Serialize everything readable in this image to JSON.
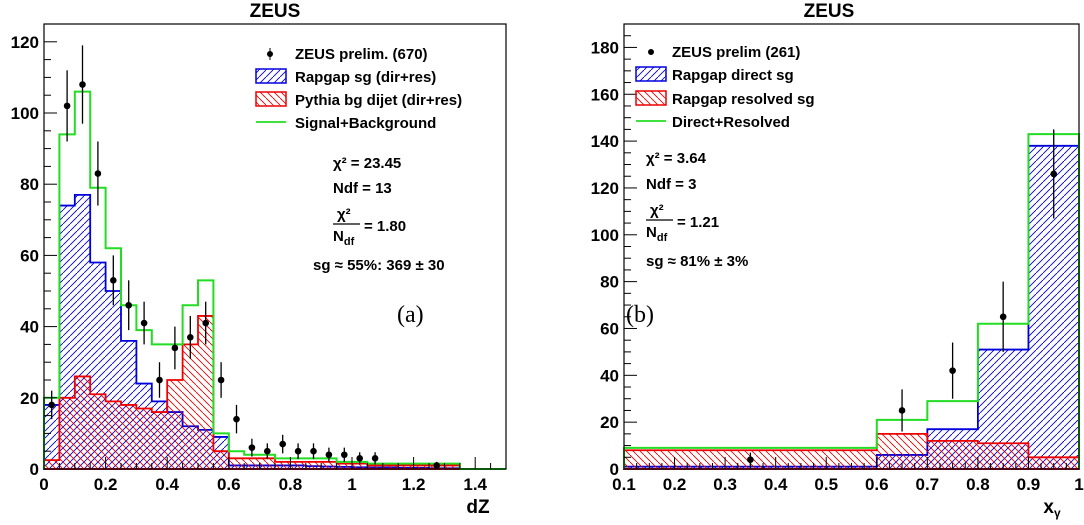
{
  "chart_data": [
    {
      "type": "bar",
      "title": "ZEUS",
      "xlabel": "dZ",
      "ylabel": "",
      "xlim": [
        0,
        1.5
      ],
      "ylim": [
        0,
        125
      ],
      "xticks": [
        0,
        0.2,
        0.4,
        0.6,
        0.8,
        1,
        1.2,
        1.4
      ],
      "xtick_labels": [
        "0",
        "0.2",
        "0.4",
        "0.6",
        "0.8",
        "1",
        "1.2",
        "1.4"
      ],
      "yticks": [
        0,
        20,
        40,
        60,
        80,
        100,
        120
      ],
      "ytick_labels": [
        "0",
        "20",
        "40",
        "60",
        "80",
        "100",
        "120"
      ],
      "bin_edges": [
        0,
        0.05,
        0.1,
        0.15,
        0.2,
        0.25,
        0.3,
        0.35,
        0.4,
        0.45,
        0.5,
        0.55,
        0.6,
        0.65,
        0.7,
        0.75,
        0.8,
        0.85,
        0.9,
        0.95,
        1.0,
        1.05,
        1.1,
        1.15,
        1.2,
        1.25,
        1.3,
        1.35,
        1.4,
        1.45,
        1.5
      ],
      "series": [
        {
          "name": "ZEUS prelim. (670)",
          "kind": "points",
          "x": [
            0.025,
            0.075,
            0.125,
            0.175,
            0.225,
            0.275,
            0.325,
            0.375,
            0.425,
            0.475,
            0.525,
            0.575,
            0.625,
            0.675,
            0.725,
            0.775,
            0.825,
            0.875,
            0.925,
            0.975,
            1.025,
            1.075,
            1.275
          ],
          "y": [
            18,
            102,
            108,
            83,
            53,
            46,
            41,
            25,
            34,
            37,
            41,
            25,
            14,
            6,
            5,
            7,
            5,
            5,
            4,
            4,
            3,
            3,
            1
          ],
          "err": [
            4,
            10,
            11,
            9,
            7,
            7,
            6,
            5,
            6,
            6,
            6,
            5,
            4,
            2.5,
            2.2,
            2.6,
            2.2,
            2.2,
            2,
            2,
            1.7,
            1.7,
            1
          ]
        },
        {
          "name": "Rapgap sg (dir+res)",
          "kind": "hatched",
          "color": "#0000dd",
          "values": [
            18,
            74,
            77,
            58,
            50,
            36,
            24,
            19,
            16,
            12,
            11,
            9,
            1,
            1,
            1,
            1,
            1,
            0.8,
            0.7,
            0.6,
            0.5,
            0.4,
            0.4,
            0.3,
            0.3,
            0.2,
            0.2,
            0,
            0,
            0
          ]
        },
        {
          "name": "Pythia bg dijet (dir+res)",
          "kind": "hatched",
          "color": "#ee0000",
          "values": [
            2.5,
            20,
            26,
            21,
            19,
            18,
            17,
            16,
            25,
            35,
            43,
            5,
            3,
            3,
            3,
            2,
            2,
            2,
            2,
            1.5,
            1.5,
            1,
            1,
            1,
            1,
            1,
            1,
            0,
            0,
            0
          ]
        },
        {
          "name": "Signal+Background",
          "kind": "step",
          "color": "#22dd22",
          "values": [
            20,
            94,
            106,
            79,
            62,
            46,
            39,
            35,
            35,
            46,
            53,
            10,
            5,
            4,
            4,
            3,
            3,
            3,
            3,
            2,
            2,
            1.5,
            1.5,
            1.5,
            1.5,
            1.5,
            1.5,
            0,
            0,
            0
          ]
        }
      ],
      "legend": "top-right",
      "annotations": [
        "χ² = 23.45",
        "Ndf = 13",
        "χ²/N_df = 1.80",
        "sg ≈ 55%: 369 ± 30"
      ],
      "panel_label": "(a)"
    },
    {
      "type": "bar",
      "title": "ZEUS",
      "xlabel": "x_γ",
      "ylabel": "",
      "xlim": [
        0.1,
        1.0
      ],
      "ylim": [
        0,
        190
      ],
      "xticks": [
        0.1,
        0.2,
        0.3,
        0.4,
        0.5,
        0.6,
        0.7,
        0.8,
        0.9,
        1.0
      ],
      "xtick_labels": [
        "0.1",
        "0.2",
        "0.3",
        "0.4",
        "0.5",
        "0.6",
        "0.7",
        "0.8",
        "0.9",
        "1"
      ],
      "yticks": [
        0,
        20,
        40,
        60,
        80,
        100,
        120,
        140,
        160,
        180
      ],
      "ytick_labels": [
        "0",
        "20",
        "40",
        "60",
        "80",
        "100",
        "120",
        "140",
        "160",
        "180"
      ],
      "bin_edges": [
        0.1,
        0.6,
        0.7,
        0.8,
        0.9,
        1.0
      ],
      "series": [
        {
          "name": "ZEUS prelim (261)",
          "kind": "points",
          "x": [
            0.35,
            0.65,
            0.75,
            0.85,
            0.95
          ],
          "y": [
            4,
            25,
            42,
            65,
            126
          ],
          "err": [
            3,
            9,
            12,
            15,
            19
          ]
        },
        {
          "name": "Rapgap direct sg",
          "kind": "hatched",
          "color": "#0000dd",
          "values": [
            1,
            6,
            17,
            51,
            138
          ]
        },
        {
          "name": "Rapgap resolved sg",
          "kind": "hatched",
          "color": "#ee0000",
          "values": [
            8,
            15,
            12,
            11,
            5
          ]
        },
        {
          "name": "Direct+Resolved",
          "kind": "step",
          "color": "#22dd22",
          "values": [
            9,
            21,
            29,
            62,
            143
          ]
        }
      ],
      "legend": "top-left",
      "annotations": [
        "χ² = 3.64",
        "Ndf = 3",
        "χ²/N_df = 1.21",
        "sg ≈ 81% ± 3%"
      ],
      "panel_label": "(b)"
    }
  ],
  "text": {
    "a": {
      "title": "ZEUS",
      "xlabel": "dZ",
      "leg1": "ZEUS prelim. (670)",
      "leg2": "Rapgap sg (dir+res)",
      "leg3": "Pythia bg dijet (dir+res)",
      "leg4": "Signal+Background",
      "chi2": "χ² = 23.45",
      "ndf": "Ndf = 13",
      "ratio_num": "χ²",
      "ratio_den": "N",
      "ratio_den_sub": "df",
      "ratio_val": "= 1.80",
      "sg": "sg ≈ 55%: 369 ± 30",
      "panel": "(a)"
    },
    "b": {
      "title": "ZEUS",
      "xlabel": "x",
      "xlabel_sub": "γ",
      "leg1": "ZEUS prelim (261)",
      "leg2": "Rapgap direct sg",
      "leg3": "Rapgap resolved sg",
      "leg4": "Direct+Resolved",
      "chi2": "χ² = 3.64",
      "ndf": "Ndf = 3",
      "ratio_num": "χ²",
      "ratio_den": "N",
      "ratio_den_sub": "df",
      "ratio_val": "= 1.21",
      "sg": "sg ≈ 81% ± 3%",
      "panel": "(b)"
    }
  }
}
